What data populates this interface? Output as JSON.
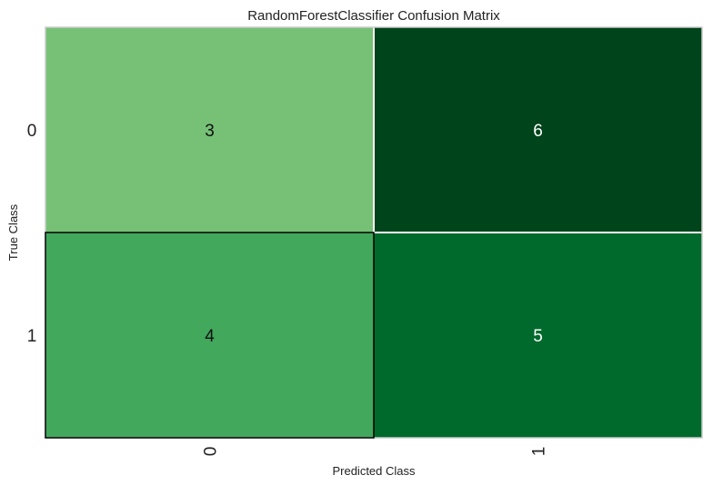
{
  "chart_data": {
    "type": "heatmap",
    "title": "RandomForestClassifier Confusion Matrix",
    "xlabel": "Predicted Class",
    "ylabel": "True Class",
    "x_categories": [
      "0",
      "1"
    ],
    "y_categories": [
      "0",
      "1"
    ],
    "values": [
      [
        3,
        6
      ],
      [
        4,
        5
      ]
    ],
    "value_range": [
      3,
      6
    ],
    "colormap": "Greens",
    "cell_colors": [
      [
        "#76c176",
        "#00441b"
      ],
      [
        "#41a85c",
        "#006a2c"
      ]
    ],
    "grid": false
  }
}
